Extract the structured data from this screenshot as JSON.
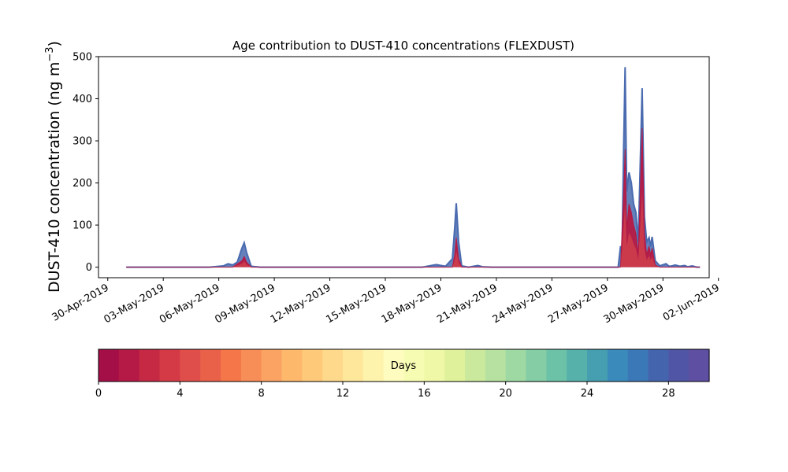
{
  "chart_data": {
    "type": "area",
    "title": "Age contribution to DUST-410 concentrations (FLEXDUST)",
    "ylabel_prefix": "DUST-410 concentration (ng m",
    "ylabel_exponent": "−3",
    "ylabel_suffix": ")",
    "xlabel": "",
    "ylim": [
      -25,
      500
    ],
    "yticks": [
      0,
      100,
      200,
      300,
      400,
      500
    ],
    "xlim": [
      "2019-04-29T12:00",
      "2019-06-01T12:00"
    ],
    "xticks": [
      {
        "date": "2019-04-30",
        "label": "30-Apr-2019"
      },
      {
        "date": "2019-05-03",
        "label": "03-May-2019"
      },
      {
        "date": "2019-05-06",
        "label": "06-May-2019"
      },
      {
        "date": "2019-05-09",
        "label": "09-May-2019"
      },
      {
        "date": "2019-05-12",
        "label": "12-May-2019"
      },
      {
        "date": "2019-05-15",
        "label": "15-May-2019"
      },
      {
        "date": "2019-05-18",
        "label": "18-May-2019"
      },
      {
        "date": "2019-05-21",
        "label": "21-May-2019"
      },
      {
        "date": "2019-05-24",
        "label": "24-May-2019"
      },
      {
        "date": "2019-05-27",
        "label": "27-May-2019"
      },
      {
        "date": "2019-05-30",
        "label": "30-May-2019"
      },
      {
        "date": "2019-06-02",
        "label": "02-Jun-2019"
      }
    ],
    "grid": false,
    "series": [
      {
        "role": "total (all ages, 0-30 days)",
        "color": "#4a6bb0",
        "points": [
          [
            "2019-05-01T00:00",
            0
          ],
          [
            "2019-05-05T12:00",
            0
          ],
          [
            "2019-05-06T06:00",
            3
          ],
          [
            "2019-05-06T12:00",
            8
          ],
          [
            "2019-05-06T18:00",
            5
          ],
          [
            "2019-05-07T00:00",
            12
          ],
          [
            "2019-05-07T06:00",
            45
          ],
          [
            "2019-05-07T09:00",
            58
          ],
          [
            "2019-05-07T12:00",
            35
          ],
          [
            "2019-05-07T18:00",
            2
          ],
          [
            "2019-05-08T06:00",
            0
          ],
          [
            "2019-05-17T00:00",
            0
          ],
          [
            "2019-05-17T18:00",
            6
          ],
          [
            "2019-05-18T06:00",
            2
          ],
          [
            "2019-05-18T15:00",
            20
          ],
          [
            "2019-05-18T18:00",
            95
          ],
          [
            "2019-05-18T20:00",
            152
          ],
          [
            "2019-05-18T23:00",
            60
          ],
          [
            "2019-05-19T03:00",
            3
          ],
          [
            "2019-05-19T12:00",
            0
          ],
          [
            "2019-05-20T00:00",
            4
          ],
          [
            "2019-05-20T06:00",
            1
          ],
          [
            "2019-05-20T18:00",
            0
          ],
          [
            "2019-05-27T14:00",
            0
          ],
          [
            "2019-05-27T17:00",
            50
          ],
          [
            "2019-05-27T19:00",
            35
          ],
          [
            "2019-05-27T21:00",
            280
          ],
          [
            "2019-05-27T23:00",
            475
          ],
          [
            "2019-05-28T01:00",
            180
          ],
          [
            "2019-05-28T04:00",
            225
          ],
          [
            "2019-05-28T07:00",
            200
          ],
          [
            "2019-05-28T10:00",
            150
          ],
          [
            "2019-05-28T13:00",
            130
          ],
          [
            "2019-05-28T16:00",
            60
          ],
          [
            "2019-05-28T18:00",
            200
          ],
          [
            "2019-05-28T21:00",
            425
          ],
          [
            "2019-05-29T00:00",
            120
          ],
          [
            "2019-05-29T03:00",
            60
          ],
          [
            "2019-05-29T06:00",
            70
          ],
          [
            "2019-05-29T08:00",
            50
          ],
          [
            "2019-05-29T10:00",
            72
          ],
          [
            "2019-05-29T14:00",
            15
          ],
          [
            "2019-05-29T20:00",
            3
          ],
          [
            "2019-05-30T04:00",
            8
          ],
          [
            "2019-05-30T08:00",
            2
          ],
          [
            "2019-05-30T12:00",
            3
          ],
          [
            "2019-05-30T16:00",
            5
          ],
          [
            "2019-05-30T22:00",
            2
          ],
          [
            "2019-05-31T04:00",
            4
          ],
          [
            "2019-05-31T08:00",
            1
          ],
          [
            "2019-05-31T14:00",
            3
          ],
          [
            "2019-05-31T20:00",
            0
          ],
          [
            "2019-06-01T00:00",
            0
          ]
        ]
      },
      {
        "role": "young (0-2 days)",
        "color": "#b51944",
        "points": [
          [
            "2019-05-01T00:00",
            0
          ],
          [
            "2019-05-06T18:00",
            0
          ],
          [
            "2019-05-07T06:00",
            15
          ],
          [
            "2019-05-07T09:00",
            25
          ],
          [
            "2019-05-07T12:00",
            12
          ],
          [
            "2019-05-07T18:00",
            0
          ],
          [
            "2019-05-18T15:00",
            0
          ],
          [
            "2019-05-18T18:00",
            30
          ],
          [
            "2019-05-18T20:00",
            70
          ],
          [
            "2019-05-18T23:00",
            20
          ],
          [
            "2019-05-19T03:00",
            0
          ],
          [
            "2019-05-27T17:00",
            0
          ],
          [
            "2019-05-27T21:00",
            170
          ],
          [
            "2019-05-27T23:00",
            280
          ],
          [
            "2019-05-28T01:00",
            90
          ],
          [
            "2019-05-28T04:00",
            150
          ],
          [
            "2019-05-28T07:00",
            130
          ],
          [
            "2019-05-28T10:00",
            100
          ],
          [
            "2019-05-28T13:00",
            80
          ],
          [
            "2019-05-28T16:00",
            30
          ],
          [
            "2019-05-28T18:00",
            140
          ],
          [
            "2019-05-28T21:00",
            330
          ],
          [
            "2019-05-29T00:00",
            80
          ],
          [
            "2019-05-29T03:00",
            30
          ],
          [
            "2019-05-29T06:00",
            50
          ],
          [
            "2019-05-29T08:00",
            30
          ],
          [
            "2019-05-29T10:00",
            45
          ],
          [
            "2019-05-29T14:00",
            5
          ],
          [
            "2019-05-29T20:00",
            0
          ],
          [
            "2019-06-01T00:00",
            0
          ]
        ]
      }
    ],
    "colorbar": {
      "label": "Days",
      "range": [
        0,
        30
      ],
      "ticks": [
        0,
        4,
        8,
        12,
        16,
        20,
        24,
        28
      ],
      "colormap": [
        "#a50f47",
        "#b51945",
        "#c52944",
        "#d43a46",
        "#e04e4b",
        "#ea614a",
        "#f47649",
        "#f88e57",
        "#fba363",
        "#fdb86c",
        "#fec979",
        "#fed98b",
        "#fee79a",
        "#fef3ac",
        "#fefcbe",
        "#f7fcb3",
        "#eef8a6",
        "#dff29b",
        "#cbe99d",
        "#b6e1a0",
        "#9ed8a3",
        "#84cda5",
        "#6cc2a6",
        "#56b1ab",
        "#469fb1",
        "#3a8bbb",
        "#3b78b7",
        "#4465ad",
        "#5055a5",
        "#5e4fa2"
      ]
    }
  }
}
